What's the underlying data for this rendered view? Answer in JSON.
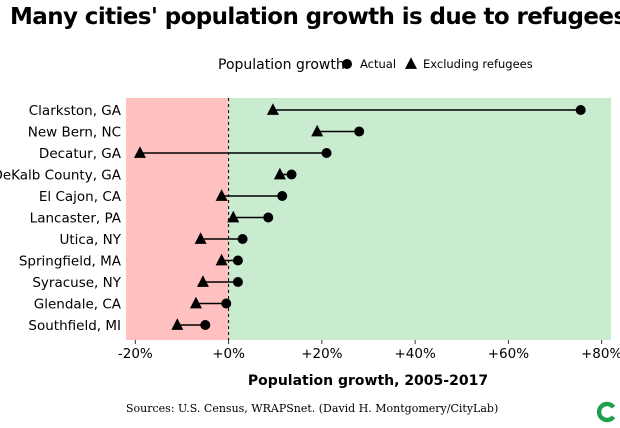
{
  "chart_data": {
    "type": "dot-plot",
    "title": "Many cities' population growth is due to refugees",
    "legend": {
      "title": "Population growth",
      "placement": "top",
      "entries": [
        {
          "name": "Actual",
          "marker": "circle"
        },
        {
          "name": "Excluding refugees",
          "marker": "triangle"
        }
      ]
    },
    "xlabel": "Population growth, 2005-2017",
    "xlim": [
      -22,
      82
    ],
    "xticks": [
      -20,
      0,
      20,
      40,
      60,
      80
    ],
    "xtick_labels": [
      "-20%",
      "+0%",
      "+20%",
      "+40%",
      "+60%",
      "+80%"
    ],
    "categories": [
      "Clarkston, GA",
      "New Bern, NC",
      "Decatur, GA",
      "DeKalb County, GA",
      "El Cajon, CA",
      "Lancaster, PA",
      "Utica, NY",
      "Springfield, MA",
      "Syracuse, NY",
      "Glendale, CA",
      "Southfield, MI"
    ],
    "series": [
      {
        "name": "Actual",
        "values": [
          75.5,
          28.0,
          21.0,
          13.5,
          11.5,
          8.5,
          3.0,
          2.0,
          2.0,
          -0.5,
          -5.0
        ]
      },
      {
        "name": "Excluding refugees",
        "values": [
          9.5,
          19.0,
          -19.0,
          11.0,
          -1.5,
          1.0,
          -6.0,
          -1.5,
          -5.5,
          -7.0,
          -11.0
        ]
      }
    ],
    "background_regions": [
      {
        "from": -22,
        "to": 0,
        "color": "#ffc0c0"
      },
      {
        "from": 0,
        "to": 82,
        "color": "#c9ebd0"
      }
    ],
    "zero_line": "dashed",
    "grid": false
  },
  "source": "Sources: U.S. Census, WRAPSnet. (David H. Montgomery/CityLab)",
  "colors": {
    "negative_region": "#ffc0c0",
    "positive_region": "#c9ebd0",
    "marker": "#000000",
    "logo": "#1fa050"
  },
  "logo_icon": "citylab-logo-icon"
}
